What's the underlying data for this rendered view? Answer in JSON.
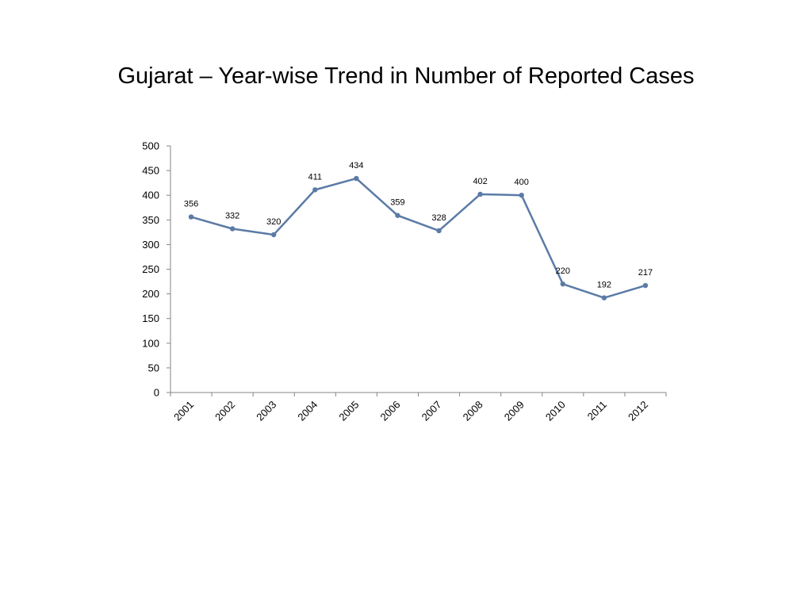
{
  "slide": {
    "title": "Gujarat – Year-wise Trend in Number of Reported Cases"
  },
  "chart_data": {
    "type": "line",
    "title": "Gujarat – Year-wise Trend in Number of Reported Cases",
    "xlabel": "",
    "ylabel": "",
    "categories": [
      "2001",
      "2002",
      "2003",
      "2004",
      "2005",
      "2006",
      "2007",
      "2008",
      "2009",
      "2010",
      "2011",
      "2012"
    ],
    "series": [
      {
        "values": [
          356,
          332,
          320,
          411,
          434,
          359,
          328,
          402,
          400,
          220,
          192,
          217
        ]
      }
    ],
    "ylim": [
      0,
      500
    ],
    "yticks": [
      "0",
      "50",
      "100",
      "150",
      "200",
      "250",
      "300",
      "350",
      "400",
      "450",
      "500"
    ],
    "data_labels": [
      "356",
      "332",
      "320",
      "411",
      "434",
      "359",
      "328",
      "402",
      "400",
      "220",
      "192",
      "217"
    ],
    "grid": false,
    "legend": "none",
    "line_color": "#5b7ba6"
  }
}
